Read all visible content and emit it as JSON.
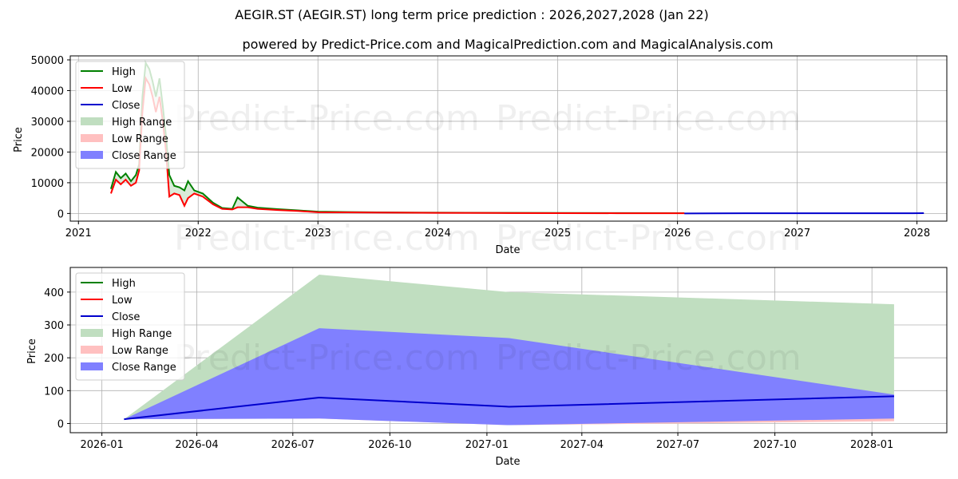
{
  "header": {
    "title": "AEGIR.ST (AEGIR.ST) long term price prediction : 2026,2027,2028 (Jan 22)",
    "subtitle": "powered by Predict-Price.com and MagicalPrediction.com and MagicalAnalysis.com"
  },
  "watermark": "Predict-Price.com",
  "legend": [
    "High",
    "Low",
    "Close",
    "High Range",
    "Low Range",
    "Close Range"
  ],
  "colors": {
    "high": "#008000",
    "low": "#ff0000",
    "close": "#0000cd",
    "high_range": "#c0dec0",
    "low_range": "#ffc0c0",
    "close_range": "#8080ff",
    "grid": "#b0b0b0"
  },
  "chart_data": [
    {
      "type": "line",
      "title": "Historical price and long term prediction",
      "xlabel": "Date",
      "ylabel": "Price",
      "x_ticks": [
        "2021",
        "2022",
        "2023",
        "2024",
        "2025",
        "2026",
        "2027",
        "2028"
      ],
      "y_ticks": [
        0,
        10000,
        20000,
        30000,
        40000,
        50000
      ],
      "ylim": [
        -2500,
        51300
      ],
      "grid": true,
      "legend_position": "upper left",
      "series": [
        {
          "name": "High",
          "x": [
            "2021-04-10",
            "2021-04-25",
            "2021-05-10",
            "2021-05-25",
            "2021-06-10",
            "2021-06-25",
            "2021-07-05",
            "2021-07-15",
            "2021-07-25",
            "2021-08-05",
            "2021-08-15",
            "2021-08-25",
            "2021-09-05",
            "2021-09-15",
            "2021-09-25",
            "2021-10-05",
            "2021-10-20",
            "2021-11-05",
            "2021-11-20",
            "2021-12-01",
            "2021-12-20",
            "2022-01-15",
            "2022-02-15",
            "2022-03-15",
            "2022-04-15",
            "2022-05-01",
            "2022-06-01",
            "2022-07-01",
            "2022-09-01",
            "2022-11-01",
            "2023-01-01",
            "2023-04-01",
            "2023-07-01",
            "2024-01-01",
            "2024-07-01",
            "2025-01-01",
            "2025-07-01",
            "2026-01-22"
          ],
          "values": [
            8000,
            13500,
            11500,
            13000,
            10500,
            12500,
            16000,
            38000,
            49000,
            47000,
            43000,
            38000,
            44000,
            35000,
            25000,
            12500,
            9000,
            8500,
            7500,
            10500,
            7500,
            6500,
            3500,
            1800,
            1500,
            5200,
            2500,
            1900,
            1400,
            1000,
            600,
            450,
            350,
            250,
            200,
            150,
            120,
            100
          ]
        },
        {
          "name": "Low",
          "x": [
            "2021-04-10",
            "2021-04-25",
            "2021-05-10",
            "2021-05-25",
            "2021-06-10",
            "2021-06-25",
            "2021-07-05",
            "2021-07-15",
            "2021-07-25",
            "2021-08-05",
            "2021-08-15",
            "2021-08-25",
            "2021-09-05",
            "2021-09-15",
            "2021-09-25",
            "2021-10-05",
            "2021-10-20",
            "2021-11-05",
            "2021-11-20",
            "2021-12-01",
            "2021-12-20",
            "2022-01-15",
            "2022-02-15",
            "2022-03-15",
            "2022-04-15",
            "2022-05-01",
            "2022-06-01",
            "2022-07-01",
            "2022-09-01",
            "2022-11-01",
            "2023-01-01",
            "2023-04-01",
            "2023-07-01",
            "2024-01-01",
            "2024-07-01",
            "2025-01-01",
            "2025-07-01",
            "2026-01-22"
          ],
          "values": [
            6500,
            11000,
            9500,
            11000,
            9000,
            10000,
            14000,
            33000,
            44000,
            42000,
            38000,
            33000,
            38000,
            30000,
            20000,
            5500,
            6500,
            6000,
            2500,
            5000,
            6500,
            5500,
            3000,
            1500,
            1300,
            2000,
            2000,
            1500,
            1100,
            800,
            400,
            350,
            300,
            200,
            150,
            100,
            80,
            60
          ]
        },
        {
          "name": "Close",
          "x": [
            "2026-01-22",
            "2026-07-26",
            "2027-01-22",
            "2028-01-22"
          ],
          "values": [
            13,
            79,
            51,
            83
          ]
        }
      ]
    },
    {
      "type": "area",
      "title": "Long term price prediction 2026-2028",
      "xlabel": "Date",
      "ylabel": "Price",
      "x_ticks": [
        "2026-01",
        "2026-04",
        "2026-07",
        "2026-10",
        "2027-01",
        "2027-04",
        "2027-07",
        "2027-10",
        "2028-01"
      ],
      "y_ticks": [
        0,
        100,
        200,
        300,
        400
      ],
      "ylim": [
        -28,
        475
      ],
      "grid": true,
      "legend_position": "upper left",
      "x": [
        "2026-01-22",
        "2026-07-26",
        "2027-01-22",
        "2028-01-22"
      ],
      "series": [
        {
          "name": "High Range",
          "lower": [
            13,
            30,
            -5,
            8
          ],
          "upper": [
            13,
            453,
            400,
            363
          ]
        },
        {
          "name": "Close Range",
          "lower": [
            13,
            15,
            -5,
            15
          ],
          "upper": [
            13,
            290,
            260,
            88
          ]
        },
        {
          "name": "Low Range",
          "lower": [
            13,
            15,
            -5,
            7
          ],
          "upper": [
            13,
            30,
            2,
            15
          ]
        },
        {
          "name": "Close",
          "values": [
            13,
            79,
            51,
            83
          ]
        },
        {
          "name": "High",
          "values": []
        },
        {
          "name": "Low",
          "values": []
        }
      ]
    }
  ]
}
